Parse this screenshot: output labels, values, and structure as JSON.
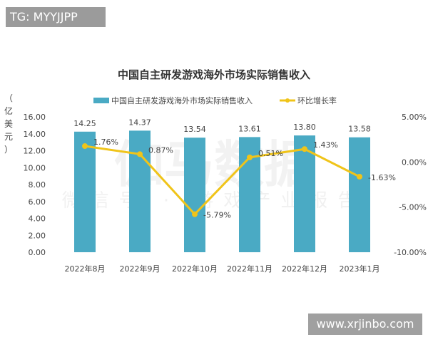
{
  "overlay": {
    "top_tag": "TG: MYYJJPP",
    "bottom_site": "www.xrjinbo.com",
    "watermark_main": "伽马数据",
    "watermark_sub": "微信号 · 游戏产业报告"
  },
  "chart_data": {
    "type": "bar+line",
    "title": "中国自主研发游戏海外市场实际销售收入",
    "ylabel": "（亿美元）",
    "categories": [
      "2022年8月",
      "2022年9月",
      "2022年10月",
      "2022年11月",
      "2022年12月",
      "2023年1月"
    ],
    "series": [
      {
        "name": "中国自主研发游戏海外市场实际销售收入",
        "type": "bar",
        "axis": "left",
        "color": "#4aaac4",
        "values": [
          14.25,
          14.37,
          13.54,
          13.61,
          13.8,
          13.58
        ],
        "labels": [
          "14.25",
          "14.37",
          "13.54",
          "13.61",
          "13.80",
          "13.58"
        ]
      },
      {
        "name": "环比增长率",
        "type": "line",
        "axis": "right",
        "color": "#f0c419",
        "values": [
          1.76,
          0.87,
          -5.79,
          0.51,
          1.43,
          -1.63
        ],
        "labels": [
          "1.76%",
          "0.87%",
          "-5.79%",
          "0.51%",
          "1.43%",
          "-1.63%"
        ]
      }
    ],
    "ylim": [
      0,
      16
    ],
    "yticks": [
      "0.00",
      "2.00",
      "4.00",
      "6.00",
      "8.00",
      "10.00",
      "12.00",
      "14.00",
      "16.00"
    ],
    "y2lim": [
      -10,
      5
    ],
    "y2ticks": [
      "-10.00%",
      "-5.00%",
      "0.00%",
      "5.00%"
    ],
    "legend": "top",
    "grid": false
  }
}
